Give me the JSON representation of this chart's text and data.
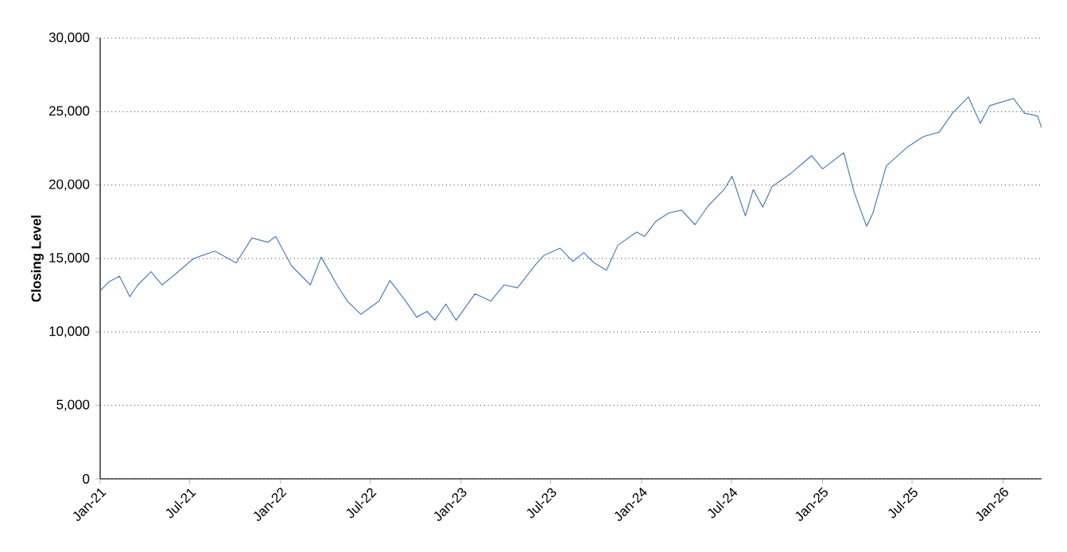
{
  "chart_data": {
    "type": "line",
    "ylabel": "Closing Level",
    "x": [
      "2021-01-01",
      "2021-01-18",
      "2021-02-09",
      "2021-03-02",
      "2021-03-18",
      "2021-04-14",
      "2021-05-06",
      "2021-06-01",
      "2021-07-09",
      "2021-08-21",
      "2021-10-03",
      "2021-11-04",
      "2021-12-06",
      "2021-12-22",
      "2022-01-23",
      "2022-03-02",
      "2022-03-24",
      "2022-04-25",
      "2022-05-16",
      "2022-06-12",
      "2022-07-19",
      "2022-08-10",
      "2022-09-11",
      "2022-10-03",
      "2022-10-24",
      "2022-11-09",
      "2022-12-01",
      "2022-12-22",
      "2023-01-29",
      "2023-03-02",
      "2023-03-29",
      "2023-04-25",
      "2023-06-01",
      "2023-06-17",
      "2023-07-20",
      "2023-08-15",
      "2023-09-06",
      "2023-09-27",
      "2023-10-22",
      "2023-11-14",
      "2023-12-22",
      "2024-01-07",
      "2024-01-29",
      "2024-02-25",
      "2024-03-22",
      "2024-04-18",
      "2024-05-15",
      "2024-06-16",
      "2024-07-02",
      "2024-07-29",
      "2024-08-14",
      "2024-09-02",
      "2024-09-21",
      "2024-10-29",
      "2024-12-10",
      "2025-01-01",
      "2025-02-13",
      "2025-03-06",
      "2025-03-31",
      "2025-04-13",
      "2025-05-10",
      "2025-06-22",
      "2025-07-24",
      "2025-08-25",
      "2025-09-21",
      "2025-10-23",
      "2025-11-16",
      "2025-12-05",
      "2026-01-22",
      "2026-02-13",
      "2026-03-12",
      "2026-03-20"
    ],
    "series": [
      {
        "color": "#4a7ebb",
        "values": [
          12800,
          13400,
          13800,
          12400,
          13200,
          14100,
          13200,
          13900,
          15000,
          15500,
          14700,
          16400,
          16100,
          16500,
          14500,
          13200,
          15100,
          13200,
          12100,
          11200,
          12100,
          13500,
          12100,
          11000,
          11400,
          10800,
          11900,
          10800,
          12600,
          12100,
          13200,
          13000,
          14600,
          15200,
          15700,
          14800,
          15400,
          14700,
          14200,
          15900,
          16800,
          16500,
          17500,
          18100,
          18300,
          17300,
          18600,
          19700,
          20600,
          17900,
          19700,
          18500,
          19900,
          20800,
          22000,
          21100,
          22200,
          19500,
          17200,
          18100,
          21300,
          22600,
          23300,
          23600,
          24900,
          26000,
          24200,
          25400,
          25900,
          24900,
          24700,
          23900
        ]
      }
    ],
    "xlim": [
      "2021-01-01",
      "2026-03-20"
    ],
    "xticks": [
      {
        "value": "2021-01-01",
        "label": "Jan-21"
      },
      {
        "value": "2021-07-01",
        "label": "Jul-21"
      },
      {
        "value": "2022-01-01",
        "label": "Jan-22"
      },
      {
        "value": "2022-07-01",
        "label": "Jul-22"
      },
      {
        "value": "2023-01-01",
        "label": "Jan-23"
      },
      {
        "value": "2023-07-01",
        "label": "Jul-23"
      },
      {
        "value": "2024-01-01",
        "label": "Jan-24"
      },
      {
        "value": "2024-07-01",
        "label": "Jul-24"
      },
      {
        "value": "2025-01-01",
        "label": "Jan-25"
      },
      {
        "value": "2025-07-01",
        "label": "Jul-25"
      },
      {
        "value": "2026-01-01",
        "label": "Jan-26"
      }
    ],
    "ylim": [
      0,
      30000
    ],
    "yticks": [
      0,
      {
        "value": 5000,
        "label": "5,000"
      },
      {
        "value": 10000,
        "label": "10,000"
      },
      {
        "value": 15000,
        "label": "15,000"
      },
      {
        "value": 20000,
        "label": "20,000"
      },
      {
        "value": 25000,
        "label": "25,000"
      },
      {
        "value": 30000,
        "label": "30,000"
      }
    ],
    "grid": "y",
    "marker": "none",
    "line_style": "solid"
  }
}
